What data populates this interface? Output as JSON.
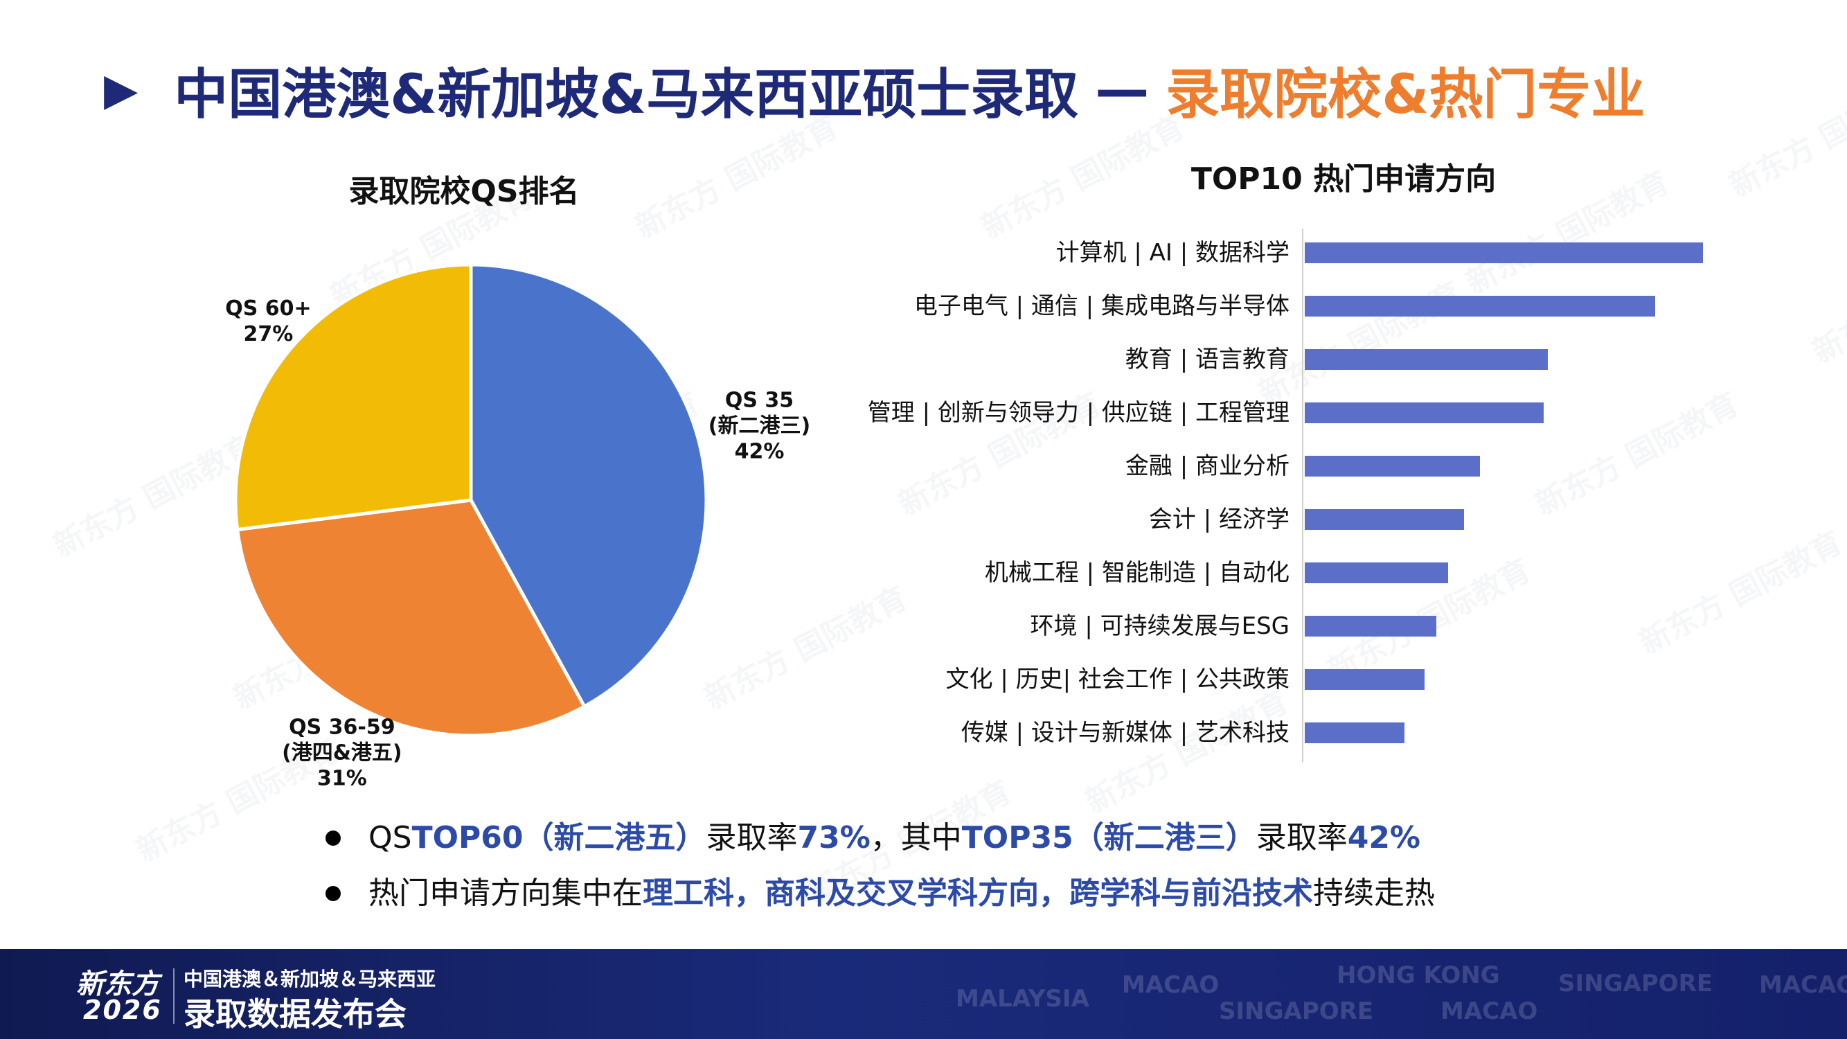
{
  "header": {
    "title_main": "中国港澳&新加坡&马来西亚硕士录取",
    "title_dash": "—",
    "title_accent": "录取院校&热门专业",
    "bullet_icon": "play-triangle-icon"
  },
  "watermark_text": "新东方 国际教育",
  "chart_data": [
    {
      "type": "pie",
      "title": "录取院校QS排名",
      "slices": [
        {
          "label_lines": [
            "QS 35",
            "(新二港三)"
          ],
          "percent_text": "42%",
          "value": 42,
          "color": "#4a74cc"
        },
        {
          "label_lines": [
            "QS 36-59",
            "(港四&港五)"
          ],
          "percent_text": "31%",
          "value": 31,
          "color": "#ee8433"
        },
        {
          "label_lines": [
            "QS 60+"
          ],
          "percent_text": "27%",
          "value": 27,
          "color": "#f2bb05"
        }
      ],
      "start_angle_deg": 0,
      "direction": "clockwise",
      "legend": "none"
    },
    {
      "type": "bar",
      "orientation": "horizontal",
      "title": "TOP10 热门申请方向",
      "categories": [
        "计算机 | AI | 数据科学",
        "电子电气 | 通信 | 集成电路与半导体",
        "教育 | 语言教育",
        "管理 | 创新与领导力 | 供应链 | 工程管理",
        "金融 | 商业分析",
        "会计 | 经济学",
        "机械工程 | 智能制造 | 自动化",
        "环境 | 可持续发展与ESG",
        "文化 | 历史| 社会工作 | 公共政策",
        "传媒 | 设计与新媒体 | 艺术科技"
      ],
      "values": [
        100,
        88,
        61,
        60,
        44,
        40,
        36,
        33,
        30,
        25
      ],
      "xlim": [
        0,
        100
      ],
      "axis_labels_visible": false,
      "grid": false,
      "bar_color": "#5b6fc8"
    }
  ],
  "bullets": [
    [
      {
        "text": "QS ",
        "hl": false
      },
      {
        "text": "TOP60（新二港五）",
        "hl": true
      },
      {
        "text": "录取率",
        "hl": false
      },
      {
        "text": "73%",
        "hl": true
      },
      {
        "text": "，其中",
        "hl": false
      },
      {
        "text": "TOP35（新二港三）",
        "hl": true
      },
      {
        "text": "录取率",
        "hl": false
      },
      {
        "text": "42%",
        "hl": true
      }
    ],
    [
      {
        "text": "热门申请方向集中在",
        "hl": false
      },
      {
        "text": "理工科，商科及交叉学科方向，跨学科与前沿技术",
        "hl": true
      },
      {
        "text": "持续走热",
        "hl": false
      }
    ]
  ],
  "footer": {
    "logo_text": "新东方",
    "logo_year": "2026",
    "line1": "中国港澳＆新加坡＆马来西亚",
    "line2": "录取数据发布会",
    "cities": [
      "MALAYSIA",
      "MACAO",
      "HONG KONG",
      "SINGAPORE",
      "MACAO",
      "SINGAPORE",
      "MACAO"
    ]
  }
}
